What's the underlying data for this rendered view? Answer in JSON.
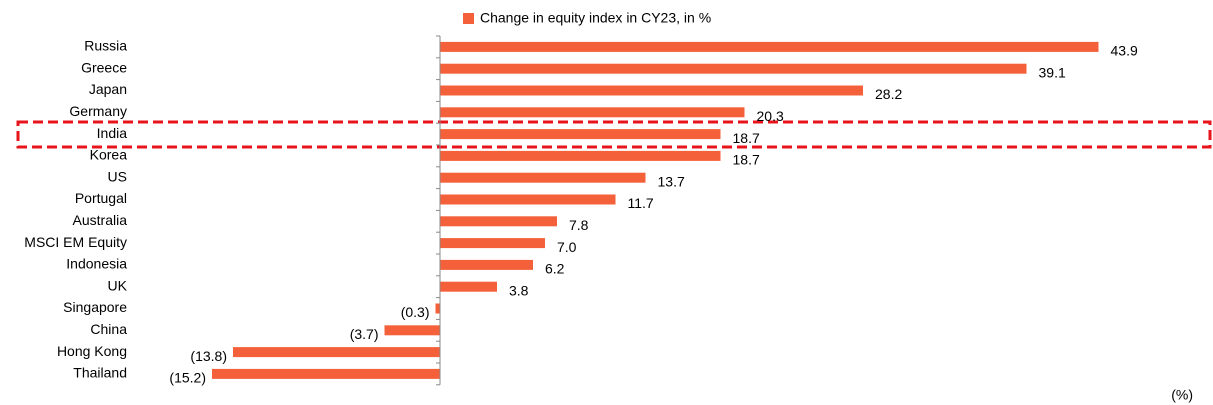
{
  "chart_data": {
    "type": "hbar",
    "legend": "Change in equity index in CY23, in %",
    "annotation": "(%)",
    "categories": [
      "Russia",
      "Greece",
      "Japan",
      "Germany",
      "India",
      "Korea",
      "US",
      "Portugal",
      "Australia",
      "MSCI EM Equity",
      "Indonesia",
      "UK",
      "Singapore",
      "China",
      "Hong Kong",
      "Thailand"
    ],
    "values": [
      43.9,
      39.1,
      28.2,
      20.3,
      18.7,
      18.7,
      13.7,
      11.7,
      7.8,
      7.0,
      6.2,
      3.8,
      -0.3,
      -3.7,
      -13.8,
      -15.2
    ],
    "value_labels": [
      "43.9",
      "39.1",
      "28.2",
      "20.3",
      "18.7",
      "18.7",
      "13.7",
      "11.7",
      "7.8",
      "7.0",
      "6.2",
      "3.8",
      "(0.3)",
      "(3.7)",
      "(13.8)",
      "(15.2)"
    ],
    "color": "#f4603a",
    "xlim": [
      -16,
      44
    ]
  }
}
